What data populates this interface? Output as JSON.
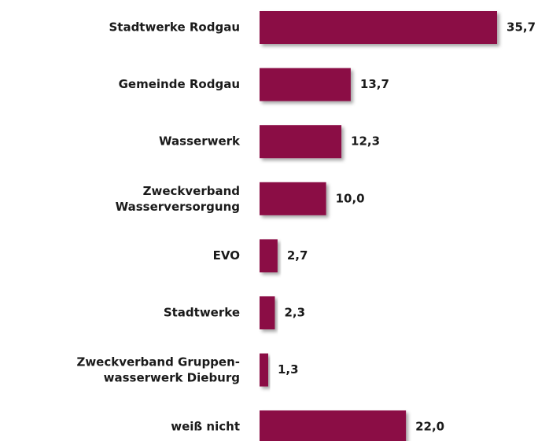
{
  "chart_data": {
    "type": "bar",
    "orientation": "horizontal",
    "categories": [
      "Stadtwerke Rodgau",
      "Gemeinde Rodgau",
      "Wasserwerk",
      "Zweckverband\nWasserversorgung",
      "EVO",
      "Stadtwerke",
      "Zweckverband Gruppen-\nwasserwerk Dieburg",
      "weiß nicht"
    ],
    "values": [
      35.7,
      13.7,
      12.3,
      10.0,
      2.7,
      2.3,
      1.3,
      22.0
    ],
    "value_labels": [
      "35,7",
      "13,7",
      "12,3",
      "10,0",
      "2,7",
      "2,3",
      "1,3",
      "22,0"
    ],
    "color": "#8b0a44"
  }
}
